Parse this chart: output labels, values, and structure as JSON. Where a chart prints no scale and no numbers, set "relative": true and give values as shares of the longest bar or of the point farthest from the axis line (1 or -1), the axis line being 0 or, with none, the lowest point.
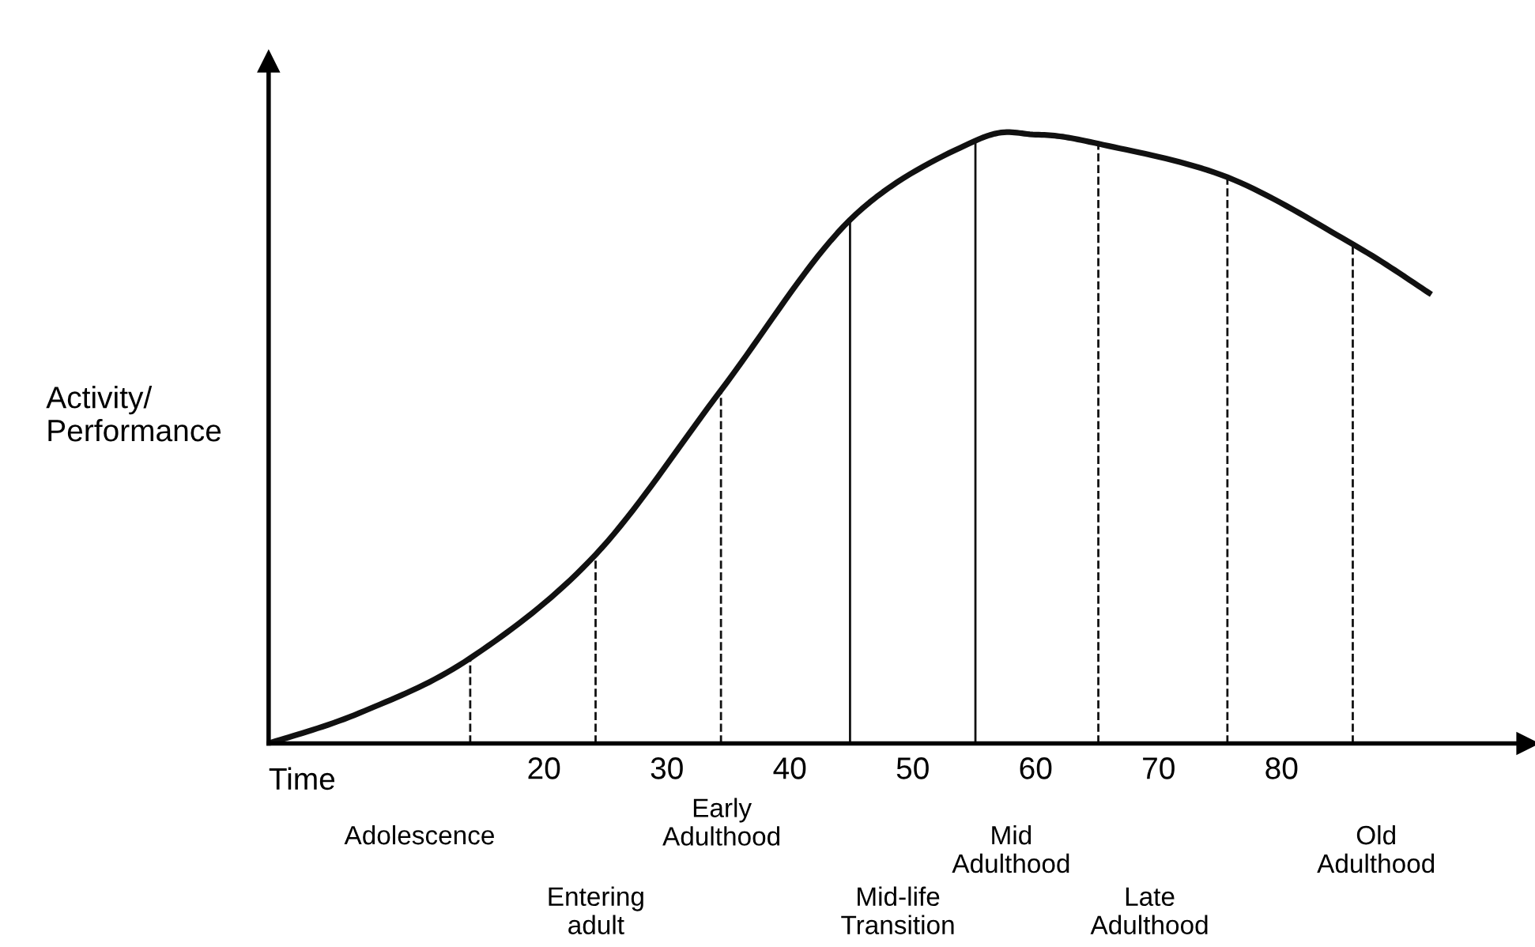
{
  "chart_data": {
    "type": "line",
    "relative": true,
    "xlabel": "Time",
    "ylabel": "Activity/\nPerformance",
    "x": [
      -2.4,
      5,
      14,
      24.2,
      34.4,
      44.9,
      55.1,
      60,
      65.1,
      75.6,
      85.8,
      92
    ],
    "series": [
      {
        "color": "#111111",
        "values": [
          0,
          0.05,
          0.14,
          0.31,
          0.58,
          0.86,
          0.99,
          1.0,
          0.985,
          0.93,
          0.82,
          0.74
        ]
      }
    ],
    "xlim": [
      -2.4,
      100
    ],
    "xticks": [
      20,
      30,
      40,
      50,
      60,
      70,
      80
    ],
    "ref_lines": [
      {
        "axis": "x",
        "value": 14,
        "line_style": "dashed",
        "color": "#111111"
      },
      {
        "axis": "x",
        "value": 24.2,
        "line_style": "dashed",
        "color": "#111111"
      },
      {
        "axis": "x",
        "value": 34.4,
        "line_style": "dashed",
        "color": "#111111"
      },
      {
        "axis": "x",
        "value": 44.9,
        "line_style": "solid",
        "color": "#111111"
      },
      {
        "axis": "x",
        "value": 55.1,
        "line_style": "solid",
        "color": "#111111"
      },
      {
        "axis": "x",
        "value": 65.1,
        "line_style": "dashed",
        "color": "#111111"
      },
      {
        "axis": "x",
        "value": 75.6,
        "line_style": "dashed",
        "color": "#111111"
      },
      {
        "axis": "x",
        "value": 85.8,
        "line_style": "dashed",
        "color": "#111111"
      }
    ],
    "annotations": [
      "Adolescence",
      "Entering\nadult",
      "Early\nAdulthood",
      "Mid-life\nTransition",
      "Mid\nAdulthood",
      "Late\nAdulthood",
      "Old\nAdulthood"
    ],
    "grid": false,
    "marker": "none",
    "line_style": "solid"
  }
}
